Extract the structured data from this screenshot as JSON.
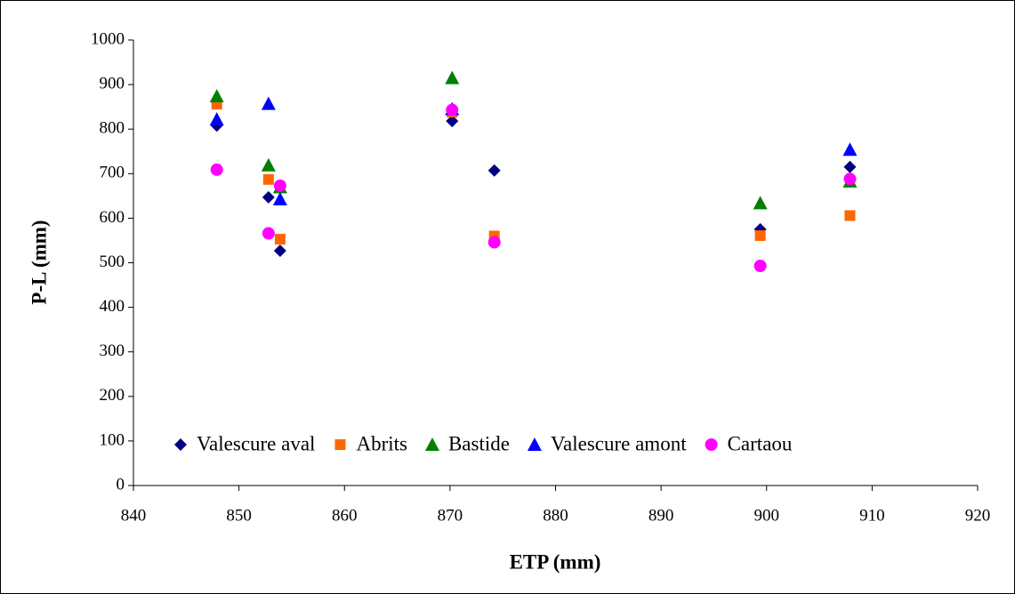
{
  "chart_data": {
    "type": "scatter",
    "x_label": "ETP (mm)",
    "y_label": "P-L (mm)",
    "xlim": [
      840,
      920
    ],
    "xticks": [
      840,
      850,
      860,
      870,
      880,
      890,
      900,
      910,
      920
    ],
    "ylim": [
      0,
      1000
    ],
    "yticks": [
      0,
      100,
      200,
      300,
      400,
      500,
      600,
      700,
      800,
      900,
      1000
    ],
    "grid": false,
    "legend": "bottom",
    "series": [
      {
        "name": "Valescure aval",
        "color": "#000080",
        "marker": "diamond",
        "x": [
          847.9,
          852.8,
          853.9,
          870.2,
          874.2,
          899.4,
          907.9
        ],
        "values": [
          808,
          647,
          527,
          818,
          707,
          575,
          715
        ]
      },
      {
        "name": "Abrits",
        "color": "#FF6600",
        "marker": "square",
        "x": [
          847.9,
          852.8,
          853.9,
          870.2,
          874.2,
          899.4,
          907.9
        ],
        "values": [
          856,
          687,
          553,
          838,
          560,
          561,
          606
        ]
      },
      {
        "name": "Bastide",
        "color": "#008000",
        "marker": "triangle",
        "x": [
          847.9,
          852.8,
          853.9,
          870.2,
          899.4,
          907.9
        ],
        "values": [
          874,
          719,
          670,
          915,
          634,
          683
        ]
      },
      {
        "name": "Valescure amont",
        "color": "#0000FF",
        "marker": "triangle",
        "x": [
          847.9,
          852.8,
          853.9,
          870.2,
          907.9
        ],
        "values": [
          822,
          857,
          643,
          845,
          754
        ]
      },
      {
        "name": "Cartaou",
        "color": "#FF00FF",
        "marker": "circle",
        "x": [
          847.9,
          852.8,
          853.9,
          870.2,
          874.2,
          899.4,
          907.9
        ],
        "values": [
          709,
          566,
          673,
          843,
          546,
          493,
          688
        ]
      }
    ]
  }
}
